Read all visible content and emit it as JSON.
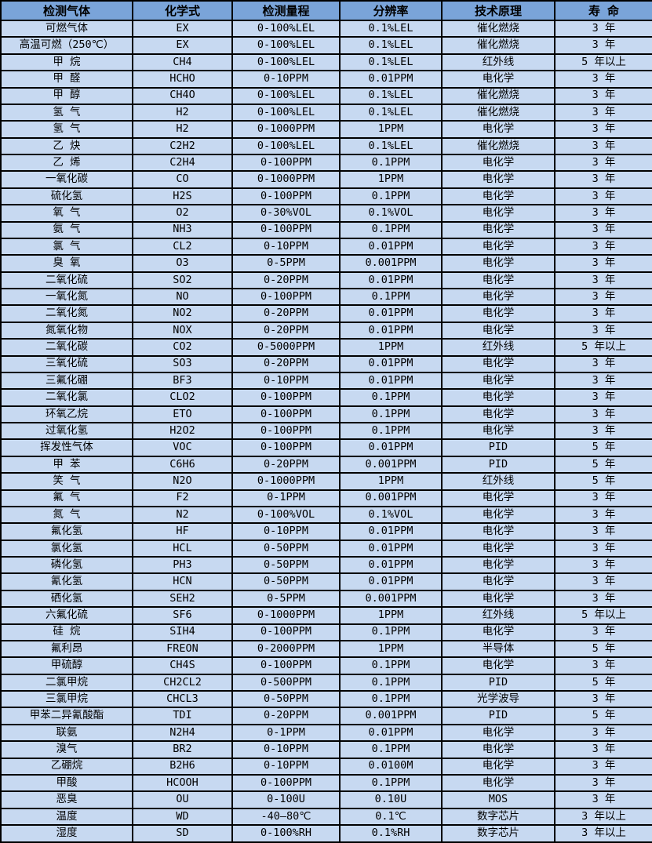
{
  "colors": {
    "header_bg": "#7aa4d9",
    "row_bg": "#c7d9f1",
    "border": "#000000",
    "text": "#000000"
  },
  "table": {
    "column_keys": [
      "gas",
      "formula",
      "range",
      "resolution",
      "principle",
      "lifespan"
    ],
    "headers": [
      "检测气体",
      "化学式",
      "检测量程",
      "分辨率",
      "技术原理",
      "寿 命"
    ],
    "rows": [
      [
        "可燃气体",
        "EX",
        "0-100%LEL",
        "0.1%LEL",
        "催化燃烧",
        "3 年"
      ],
      [
        "高温可燃（250℃）",
        "EX",
        "0-100%LEL",
        "0.1%LEL",
        "催化燃烧",
        "3 年"
      ],
      [
        "甲 烷",
        "CH4",
        "0-100%LEL",
        "0.1%LEL",
        "红外线",
        "5 年以上"
      ],
      [
        "甲 醛",
        "HCHO",
        "0-10PPM",
        "0.01PPM",
        "电化学",
        "3 年"
      ],
      [
        "甲 醇",
        "CH4O",
        "0-100%LEL",
        "0.1%LEL",
        "催化燃烧",
        "3 年"
      ],
      [
        "氢 气",
        "H2",
        "0-100%LEL",
        "0.1%LEL",
        "催化燃烧",
        "3 年"
      ],
      [
        "氢 气",
        "H2",
        "0-1000PPM",
        "1PPM",
        "电化学",
        "3 年"
      ],
      [
        "乙 炔",
        "C2H2",
        "0-100%LEL",
        "0.1%LEL",
        "催化燃烧",
        "3 年"
      ],
      [
        "乙 烯",
        "C2H4",
        "0-100PPM",
        "0.1PPM",
        "电化学",
        "3 年"
      ],
      [
        "一氧化碳",
        "CO",
        "0-1000PPM",
        "1PPM",
        "电化学",
        "3 年"
      ],
      [
        "硫化氢",
        "H2S",
        "0-100PPM",
        "0.1PPM",
        "电化学",
        "3 年"
      ],
      [
        "氧 气",
        "O2",
        "0-30%VOL",
        "0.1%VOL",
        "电化学",
        "3 年"
      ],
      [
        "氨 气",
        "NH3",
        "0-100PPM",
        "0.1PPM",
        "电化学",
        "3 年"
      ],
      [
        "氯 气",
        "CL2",
        "0-10PPM",
        "0.01PPM",
        "电化学",
        "3 年"
      ],
      [
        "臭 氧",
        "O3",
        "0-5PPM",
        "0.001PPM",
        "电化学",
        "3 年"
      ],
      [
        "二氧化硫",
        "SO2",
        "0-20PPM",
        "0.01PPM",
        "电化学",
        "3 年"
      ],
      [
        "一氧化氮",
        "NO",
        "0-100PPM",
        "0.1PPM",
        "电化学",
        "3 年"
      ],
      [
        "二氧化氮",
        "NO2",
        "0-20PPM",
        "0.01PPM",
        "电化学",
        "3 年"
      ],
      [
        "氮氧化物",
        "NOX",
        "0-20PPM",
        "0.01PPM",
        "电化学",
        "3 年"
      ],
      [
        "二氧化碳",
        "CO2",
        "0-5000PPM",
        "1PPM",
        "红外线",
        "5 年以上"
      ],
      [
        "三氧化硫",
        "SO3",
        "0-20PPM",
        "0.01PPM",
        "电化学",
        "3 年"
      ],
      [
        "三氟化硼",
        "BF3",
        "0-10PPM",
        "0.01PPM",
        "电化学",
        "3 年"
      ],
      [
        "二氧化氯",
        "CLO2",
        "0-100PPM",
        "0.1PPM",
        "电化学",
        "3 年"
      ],
      [
        "环氧乙烷",
        "ETO",
        "0-100PPM",
        "0.1PPM",
        "电化学",
        "3 年"
      ],
      [
        "过氧化氢",
        "H2O2",
        "0-100PPM",
        "0.1PPM",
        "电化学",
        "3 年"
      ],
      [
        "挥发性气体",
        "VOC",
        "0-100PPM",
        "0.01PPM",
        "PID",
        "5 年"
      ],
      [
        "甲 苯",
        "C6H6",
        "0-20PPM",
        "0.001PPM",
        "PID",
        "5 年"
      ],
      [
        "笑 气",
        "N2O",
        "0-1000PPM",
        "1PPM",
        "红外线",
        "5 年"
      ],
      [
        "氟 气",
        "F2",
        "0-1PPM",
        "0.001PPM",
        "电化学",
        "3 年"
      ],
      [
        "氮 气",
        "N2",
        "0-100%VOL",
        "0.1%VOL",
        "电化学",
        "3 年"
      ],
      [
        "氟化氢",
        "HF",
        "0-10PPM",
        "0.01PPM",
        "电化学",
        "3 年"
      ],
      [
        "氯化氢",
        "HCL",
        "0-50PPM",
        "0.01PPM",
        "电化学",
        "3 年"
      ],
      [
        "磷化氢",
        "PH3",
        "0-50PPM",
        "0.01PPM",
        "电化学",
        "3 年"
      ],
      [
        "氰化氢",
        "HCN",
        "0-50PPM",
        "0.01PPM",
        "电化学",
        "3 年"
      ],
      [
        "硒化氢",
        "SEH2",
        "0-5PPM",
        "0.001PPM",
        "电化学",
        "3 年"
      ],
      [
        "六氟化硫",
        "SF6",
        "0-1000PPM",
        "1PPM",
        "红外线",
        "5 年以上"
      ],
      [
        "硅 烷",
        "SIH4",
        "0-100PPM",
        "0.1PPM",
        "电化学",
        "3 年"
      ],
      [
        "氟利昂",
        "FREON",
        "0-2000PPM",
        "1PPM",
        "半导体",
        "5 年"
      ],
      [
        "甲硫醇",
        "CH4S",
        "0-100PPM",
        "0.1PPM",
        "电化学",
        "3 年"
      ],
      [
        "二氯甲烷",
        "CH2CL2",
        "0-500PPM",
        "0.1PPM",
        "PID",
        "5 年"
      ],
      [
        "三氯甲烷",
        "CHCL3",
        "0-50PPM",
        "0.1PPM",
        "光学波导",
        "3 年"
      ],
      [
        "甲苯二异氰酸酯",
        "TDI",
        "0-20PPM",
        "0.001PPM",
        "PID",
        "5 年"
      ],
      [
        "联氨",
        "N2H4",
        "0-1PPM",
        "0.01PPM",
        "电化学",
        "3 年"
      ],
      [
        "溴气",
        "BR2",
        "0-10PPM",
        "0.1PPM",
        "电化学",
        "3 年"
      ],
      [
        "乙硼烷",
        "B2H6",
        "0-10PPM",
        "0.0100M",
        "电化学",
        "3 年"
      ],
      [
        "甲酸",
        "HCOOH",
        "0-100PPM",
        "0.1PPM",
        "电化学",
        "3 年"
      ],
      [
        "恶臭",
        "OU",
        "0-100U",
        "0.10U",
        "MOS",
        "3 年"
      ],
      [
        "温度",
        "WD",
        "-40—80℃",
        "0.1℃",
        "数字芯片",
        "3 年以上"
      ],
      [
        "湿度",
        "SD",
        "0-100%RH",
        "0.1%RH",
        "数字芯片",
        "3 年以上"
      ]
    ]
  }
}
